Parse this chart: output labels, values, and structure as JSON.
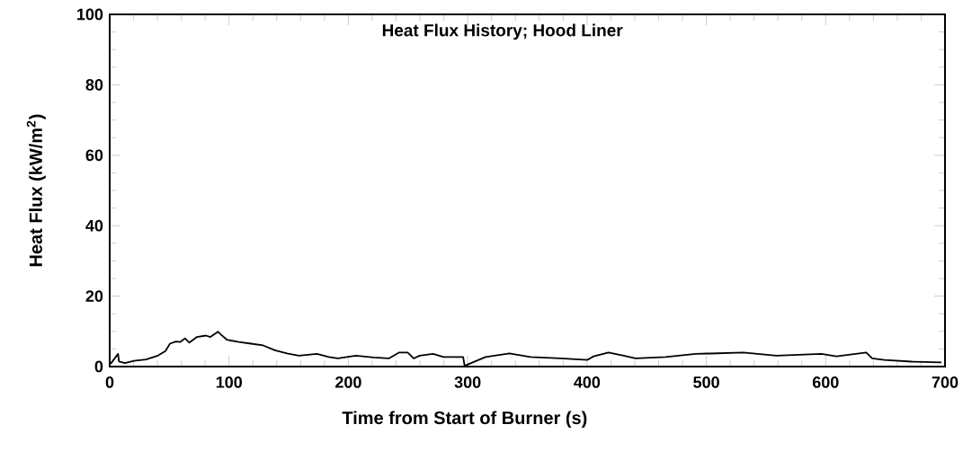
{
  "chart_data": {
    "type": "line",
    "title": "Heat Flux History;  Hood Liner",
    "xlabel": "Time from Start of Burner   (s)",
    "ylabel": "Heat Flux   (kW/m$^{2}$)",
    "color": "#000000",
    "x": [
      0.8,
      7,
      7.8,
      12.8,
      20.3,
      30.3,
      40.4,
      46.7,
      50.5,
      55.5,
      59.3,
      63.1,
      66.8,
      73.1,
      80.6,
      84.4,
      90.7,
      93.2,
      98.3,
      108.3,
      118.4,
      128.5,
      138.5,
      148.6,
      158.6,
      173.7,
      183.7,
      191.2,
      206.3,
      221.4,
      233.9,
      242.7,
      249.7,
      254.7,
      259.7,
      271,
      279.8,
      296.2,
      297.4,
      315,
      335,
      352.7,
      377.8,
      400.4,
      405.5,
      418,
      430.7,
      440.7,
      465.8,
      491,
      501,
      503.4,
      531,
      558.7,
      596.4,
      609,
      634,
      639,
      649.2,
      672,
      697
    ],
    "values": [
      0.8,
      3.6,
      1.4,
      1.0,
      1.6,
      2.0,
      3.1,
      4.4,
      6.5,
      7.1,
      7.0,
      8.0,
      6.8,
      8.4,
      8.8,
      8.4,
      9.9,
      9.1,
      7.6,
      7.0,
      6.5,
      6.0,
      4.6,
      3.7,
      3.1,
      3.6,
      2.7,
      2.3,
      3.1,
      2.6,
      2.3,
      4.0,
      4.0,
      2.3,
      3.1,
      3.6,
      2.7,
      2.7,
      0.2,
      2.7,
      3.7,
      2.7,
      2.3,
      1.9,
      2.9,
      4.0,
      3.1,
      2.3,
      2.7,
      3.6,
      3.7,
      3.7,
      4.0,
      3.1,
      3.6,
      2.9,
      4.0,
      2.3,
      1.9,
      1.4,
      1.2
    ],
    "xlim": [
      0,
      700
    ],
    "ylim": [
      0,
      100
    ],
    "xticks": [
      0,
      100,
      200,
      300,
      400,
      500,
      600,
      700
    ],
    "yticks": [
      0,
      20,
      40,
      60,
      80,
      100
    ],
    "marker": "none",
    "line_style": "solid"
  }
}
